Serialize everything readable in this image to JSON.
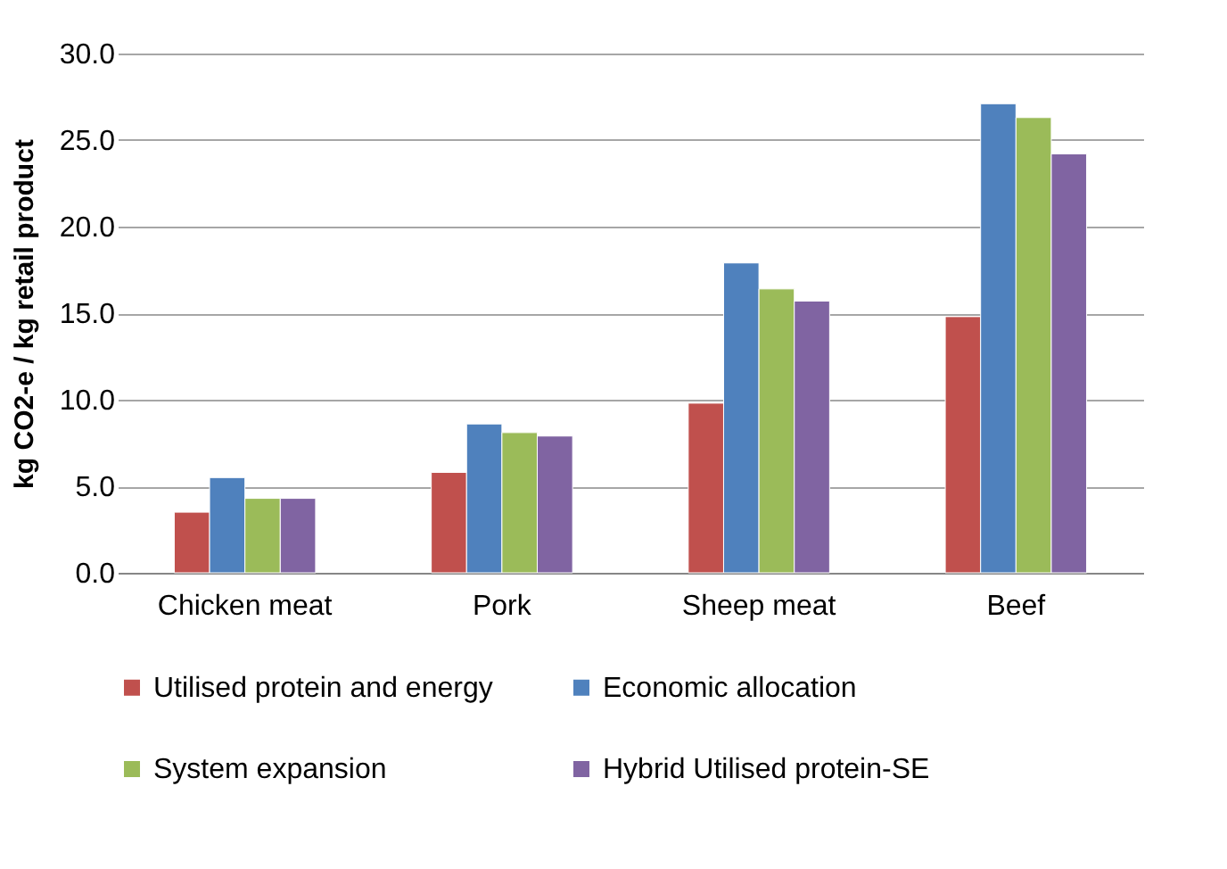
{
  "chart_data": {
    "type": "bar",
    "ylabel": "kg CO2-e / kg retail product",
    "categories": [
      "Chicken meat",
      "Pork",
      "Sheep meat",
      "Beef"
    ],
    "series": [
      {
        "name": "Utilised protein and energy",
        "color": "#c0504d",
        "values": [
          3.5,
          5.8,
          9.8,
          14.8
        ]
      },
      {
        "name": "Economic allocation",
        "color": "#4f81bd",
        "values": [
          5.5,
          8.6,
          17.9,
          27.1
        ]
      },
      {
        "name": "System expansion",
        "color": "#9bbb59",
        "values": [
          4.3,
          8.1,
          16.4,
          26.3
        ]
      },
      {
        "name": "Hybrid Utilised protein-SE",
        "color": "#8064a2",
        "values": [
          4.3,
          7.9,
          15.7,
          24.2
        ]
      }
    ],
    "ylim": [
      0,
      30
    ],
    "yticks": [
      {
        "value": 0,
        "label": "0.0"
      },
      {
        "value": 5,
        "label": "5.0"
      },
      {
        "value": 10,
        "label": "10.0"
      },
      {
        "value": 15,
        "label": "15.0"
      },
      {
        "value": 20,
        "label": "20.0"
      },
      {
        "value": 25,
        "label": "25.0"
      },
      {
        "value": 30,
        "label": "30.0"
      }
    ],
    "grid": "y",
    "legend": "bottom"
  }
}
